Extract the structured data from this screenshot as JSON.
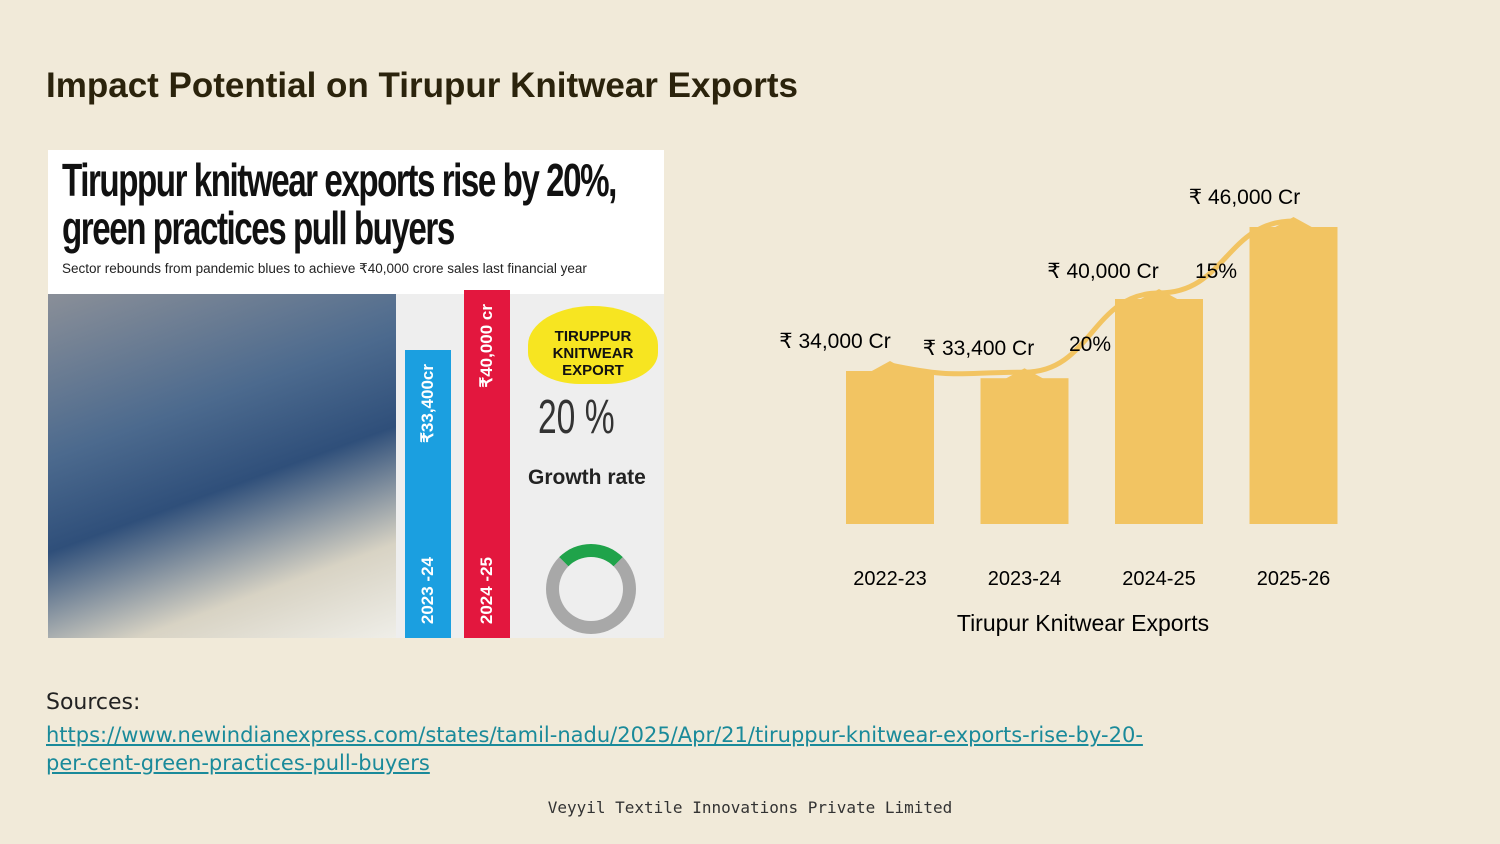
{
  "title": "Impact Potential on Tirupur Knitwear Exports",
  "clipping": {
    "headline": "Tiruppur knitwear exports rise by 20%, green practices pull buyers",
    "subheadline": "Sector rebounds from pandemic blues to achieve ₹40,000 crore sales last financial year",
    "bar1_value": "₹33,400cr",
    "bar1_year": "2023 -24",
    "bar1_color": "#1b9fe0",
    "bar2_value": "₹40,000 cr",
    "bar2_year": "2024 -25",
    "bar2_color": "#e3173e",
    "badge": "TIRUPPUR KNITWEAR EXPORT",
    "growth_value": "20 %",
    "growth_label": "Growth rate"
  },
  "chart_data": {
    "type": "bar",
    "categories": [
      "2022-23",
      "2023-24",
      "2024-25",
      "2025-26"
    ],
    "values": [
      34000,
      33400,
      40000,
      46000
    ],
    "data_labels": [
      "₹ 34,000 Cr",
      "₹ 33,400 Cr",
      "₹ 40,000 Cr",
      "₹ 46,000 Cr"
    ],
    "growth_annotations": [
      {
        "between": [
          "2023-24",
          "2024-25"
        ],
        "label": "20%"
      },
      {
        "between": [
          "2024-25",
          "2025-26"
        ],
        "label": "15%"
      }
    ],
    "trend_line": true,
    "xlabel": "Tirupur Knitwear Exports",
    "ylabel": "",
    "ylim": [
      21250,
      46000
    ],
    "grid": false,
    "bar_color": "#f2c462"
  },
  "sources": {
    "label": "Sources:",
    "url": "https://www.newindianexpress.com/states/tamil-nadu/2025/Apr/21/tiruppur-knitwear-exports-rise-by-20-per-cent-green-practices-pull-buyers"
  },
  "footer": "Veyyil Textile Innovations Private Limited"
}
